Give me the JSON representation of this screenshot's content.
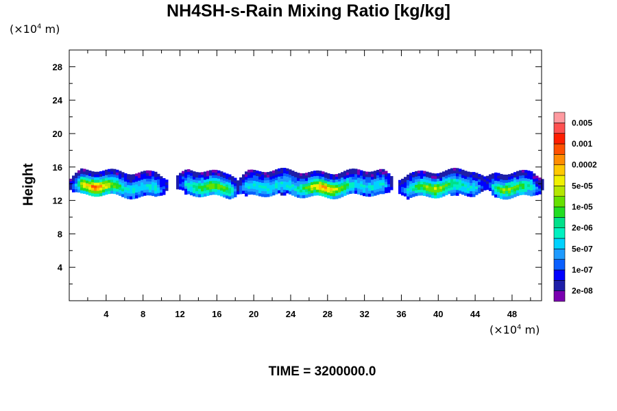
{
  "chart_data": {
    "type": "heatmap",
    "title": "NH4SH-s-Rain Mixing Ratio [kg/kg]",
    "ylabel": "Height",
    "xlabel": "",
    "x_unit": "(×10⁴ m)",
    "y_unit": "(×10⁴ m)",
    "footer": "TIME = 3200000.0",
    "xlim": [
      0,
      51.2
    ],
    "ylim": [
      0,
      30
    ],
    "x_ticks": [
      4,
      8,
      12,
      16,
      20,
      24,
      28,
      32,
      36,
      40,
      44,
      48
    ],
    "y_ticks": [
      4,
      8,
      12,
      16,
      20,
      24,
      28
    ],
    "colorbar": {
      "colors": [
        "#7a00b0",
        "#1e1ea8",
        "#0000ff",
        "#0a5fff",
        "#1e9aff",
        "#00d2ff",
        "#00f0c0",
        "#00e08a",
        "#22dd22",
        "#66e000",
        "#b4e600",
        "#f0f000",
        "#ffc800",
        "#ff8c00",
        "#ff5000",
        "#ff1e00",
        "#ff5050",
        "#ff9aa0"
      ],
      "labels": [
        "2e-08",
        "1e-07",
        "5e-07",
        "2e-06",
        "1e-05",
        "5e-05",
        "0.0002",
        "0.001",
        "0.005"
      ]
    },
    "cloud_layer": {
      "base_height": 13,
      "top_height": 15.5,
      "segments": [
        {
          "x_start": 0,
          "x_end": 10.5,
          "peak_level": 14,
          "peak_x": 2.7
        },
        {
          "x_start": 11.5,
          "x_end": 18.5,
          "peak_level": 9,
          "peak_x": 15.5
        },
        {
          "x_start": 18,
          "x_end": 35,
          "peak_level": 13,
          "peak_x": 27.5
        },
        {
          "x_start": 35.5,
          "x_end": 45,
          "peak_level": 10,
          "peak_x": 39.5
        },
        {
          "x_start": 45,
          "x_end": 51.2,
          "peak_level": 9,
          "peak_x": 47.5
        }
      ]
    }
  }
}
